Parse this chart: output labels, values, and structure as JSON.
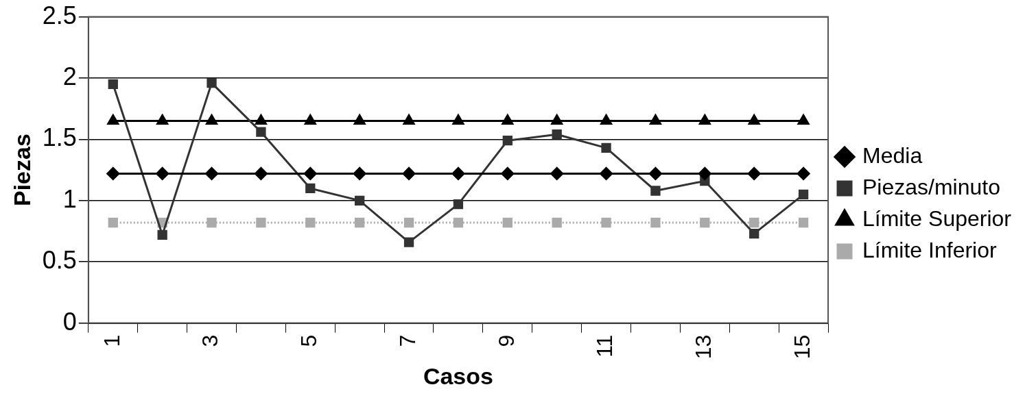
{
  "chart_data": {
    "type": "line",
    "xlabel": "Casos",
    "ylabel": "Piezas",
    "categories": [
      "1",
      null,
      "3",
      null,
      "5",
      null,
      "7",
      null,
      "9",
      null,
      "11",
      null,
      "13",
      null,
      "15"
    ],
    "series": [
      {
        "name": "Media",
        "color": "#000000",
        "marker": "diamond",
        "values": [
          1.22,
          1.22,
          1.22,
          1.22,
          1.22,
          1.22,
          1.22,
          1.22,
          1.22,
          1.22,
          1.22,
          1.22,
          1.22,
          1.22,
          1.22
        ]
      },
      {
        "name": "Piezas/minuto",
        "color": "#333333",
        "marker": "square",
        "values": [
          1.95,
          0.72,
          1.96,
          1.56,
          1.1,
          1.0,
          0.66,
          0.97,
          1.49,
          1.54,
          1.43,
          1.08,
          1.16,
          0.73,
          1.05
        ]
      },
      {
        "name": "Límite Superior",
        "color": "#000000",
        "marker": "triangle",
        "values": [
          1.65,
          1.65,
          1.65,
          1.65,
          1.65,
          1.65,
          1.65,
          1.65,
          1.65,
          1.65,
          1.65,
          1.65,
          1.65,
          1.65,
          1.65
        ]
      },
      {
        "name": "Límite Inferior",
        "color": "#aaaaaa",
        "marker": "square",
        "line_style": "dotted",
        "values": [
          0.82,
          0.82,
          0.82,
          0.82,
          0.82,
          0.82,
          0.82,
          0.82,
          0.82,
          0.82,
          0.82,
          0.82,
          0.82,
          0.82,
          0.82
        ]
      }
    ],
    "ylim": [
      0,
      2.5
    ],
    "yticks": [
      0,
      0.5,
      1,
      1.5,
      2,
      2.5
    ],
    "grid": "y",
    "legend": "right"
  }
}
